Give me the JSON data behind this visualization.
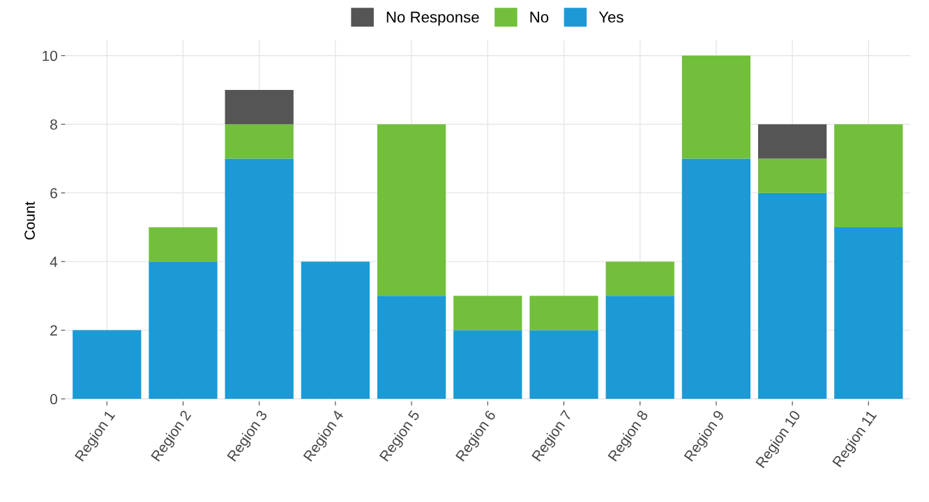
{
  "chart_data": {
    "type": "bar",
    "stacked": true,
    "ylabel": "Count",
    "categories": [
      "Region 1",
      "Region 2",
      "Region 3",
      "Region 4",
      "Region 5",
      "Region 6",
      "Region 7",
      "Region 8",
      "Region 9",
      "Region 10",
      "Region 11"
    ],
    "series": [
      {
        "name": "Yes",
        "color": "#1b9ad6",
        "values": [
          2,
          4,
          7,
          4,
          3,
          2,
          2,
          3,
          7,
          6,
          5
        ]
      },
      {
        "name": "No",
        "color": "#72bf3c",
        "values": [
          0,
          1,
          1,
          0,
          5,
          1,
          1,
          1,
          3,
          1,
          3
        ]
      },
      {
        "name": "No Response",
        "color": "#555555",
        "values": [
          0,
          0,
          1,
          0,
          0,
          0,
          0,
          0,
          0,
          1,
          0
        ]
      }
    ],
    "ylim": [
      -0.08,
      10.45
    ],
    "yticks": [
      0,
      2,
      4,
      6,
      8,
      10
    ],
    "grid": true,
    "legend": "top"
  }
}
